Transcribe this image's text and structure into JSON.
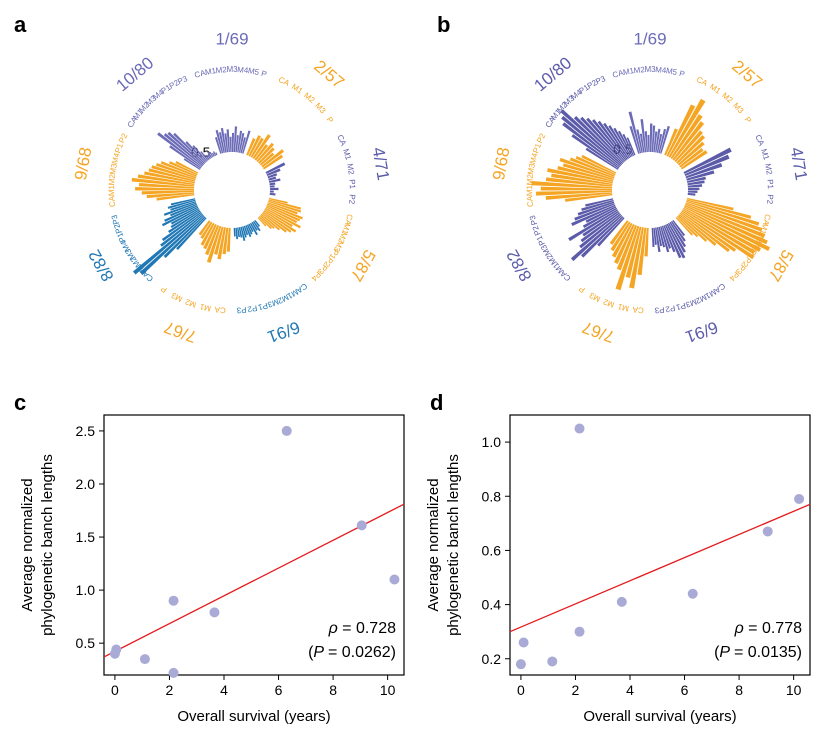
{
  "panels": [
    {
      "letter": "a",
      "type": "circular-bar",
      "scale_label": "0.5",
      "groups": [
        {
          "label": "1/69",
          "color": "#6b6bb7",
          "samples": [
            "CA",
            "M1",
            "M2",
            "M3",
            "M4",
            "M5",
            "P"
          ],
          "bars": [
            0.18,
            0.25,
            0.22,
            0.26,
            0.2,
            0.24,
            0.16,
            0.2,
            0.27,
            0.18,
            0.23,
            0.21,
            0.17,
            0.25
          ]
        },
        {
          "label": "2/57",
          "color": "#f5a524",
          "samples": [
            "CA",
            "M1",
            "M2",
            "M3",
            "P"
          ],
          "bars": [
            0.19,
            0.24,
            0.23,
            0.3,
            0.2,
            0.25,
            0.22,
            0.18,
            0.28,
            0.24
          ]
        },
        {
          "label": "4/71",
          "color": "#5b5baa",
          "samples": [
            "CA",
            "M1",
            "M2",
            "P1",
            "P2"
          ],
          "bars": [
            0.22,
            0.15,
            0.1,
            0.08,
            0.12,
            0.06,
            0.05,
            0.09,
            0.04,
            0.06
          ]
        },
        {
          "label": "5/87",
          "color": "#f5a524",
          "samples": [
            "CA",
            "M1",
            "M2",
            "M3",
            "P1",
            "P2",
            "P3",
            "P4"
          ],
          "bars": [
            0.2,
            0.35,
            0.36,
            0.33,
            0.4,
            0.38,
            0.36,
            0.42,
            0.34,
            0.4,
            0.36,
            0.32,
            0.25,
            0.2,
            0.18,
            0.12
          ]
        },
        {
          "label": "6/91",
          "color": "#1f77b4",
          "samples": [
            "CA",
            "M1",
            "M2",
            "M3",
            "P1",
            "P2",
            "P3"
          ],
          "bars": [
            0.08,
            0.12,
            0.1,
            0.14,
            0.09,
            0.11,
            0.13,
            0.1,
            0.12,
            0.15,
            0.11,
            0.1,
            0.12,
            0.09
          ]
        },
        {
          "label": "7/67",
          "color": "#f5a524",
          "samples": [
            "CA",
            "M1",
            "M2",
            "M3",
            "P"
          ],
          "bars": [
            0.25,
            0.28,
            0.34,
            0.3,
            0.4,
            0.33,
            0.28,
            0.26,
            0.2,
            0.18
          ]
        },
        {
          "label": "8/82",
          "color": "#1f77b4",
          "samples": [
            "CA",
            "M1",
            "M2",
            "M3",
            "M4",
            "P1",
            "P2",
            "P3"
          ],
          "bars": [
            0.45,
            0.6,
            0.9,
            0.95,
            0.55,
            0.5,
            0.4,
            0.35,
            0.33,
            0.42,
            0.38,
            0.3,
            0.36,
            0.28,
            0.3,
            0.26
          ]
        },
        {
          "label": "9/68",
          "color": "#f5a524",
          "samples": [
            "CA",
            "M1",
            "M2",
            "M3",
            "M4",
            "P1",
            "P2"
          ],
          "bars": [
            0.4,
            0.5,
            0.55,
            0.62,
            0.58,
            0.66,
            0.6,
            0.54,
            0.5,
            0.48,
            0.44,
            0.4,
            0.32,
            0.26
          ]
        },
        {
          "label": "10/80",
          "color": "#6b6bb7",
          "samples": [
            "CA",
            "M1",
            "M2",
            "M3",
            "M4",
            "P1",
            "P2",
            "P3"
          ],
          "bars": [
            0.2,
            0.4,
            0.58,
            0.52,
            0.5,
            0.45,
            0.3,
            0.22,
            0.12,
            0.06,
            0.05,
            0.08,
            0.06,
            0.04,
            0.05,
            0.03
          ]
        }
      ]
    },
    {
      "letter": "b",
      "type": "circular-bar",
      "scale_label": "0.5",
      "groups": [
        {
          "label": "1/69",
          "color": "#6b6bb7",
          "samples": [
            "CA",
            "M1",
            "M2",
            "M3",
            "M4",
            "M5",
            "P"
          ],
          "bars": [
            0.3,
            0.45,
            0.25,
            0.2,
            0.35,
            0.22,
            0.18,
            0.3,
            0.28,
            0.22,
            0.25,
            0.2,
            0.26,
            0.3
          ]
        },
        {
          "label": "2/57",
          "color": "#f5a524",
          "samples": [
            "CA",
            "M1",
            "M2",
            "M3",
            "P"
          ],
          "bars": [
            0.3,
            0.6,
            0.7,
            0.55,
            0.5,
            0.42,
            0.4,
            0.35,
            0.3,
            0.32
          ]
        },
        {
          "label": "4/71",
          "color": "#5b5baa",
          "samples": [
            "CA",
            "M1",
            "M2",
            "P1",
            "P2"
          ],
          "bars": [
            0.55,
            0.5,
            0.4,
            0.3,
            0.2,
            0.18,
            0.15,
            0.12,
            0.1,
            0.08
          ]
        },
        {
          "label": "5/87",
          "color": "#f5a524",
          "samples": [
            "CA",
            "M1",
            "M2",
            "M3",
            "P1",
            "P2",
            "P3",
            "P4"
          ],
          "bars": [
            0.5,
            0.7,
            0.8,
            0.85,
            0.9,
            0.95,
            1.0,
            0.92,
            0.88,
            0.9,
            0.7,
            0.65,
            0.5,
            0.4,
            0.3,
            0.25
          ]
        },
        {
          "label": "6/91",
          "color": "#5b5baa",
          "samples": [
            "CA",
            "M1",
            "M2",
            "M3",
            "P1",
            "P2",
            "P3"
          ],
          "bars": [
            0.2,
            0.25,
            0.3,
            0.35,
            0.4,
            0.38,
            0.3,
            0.25,
            0.28,
            0.22,
            0.2,
            0.26,
            0.18,
            0.2
          ]
        },
        {
          "label": "7/67",
          "color": "#f5a524",
          "samples": [
            "CA",
            "M1",
            "M2",
            "M3",
            "P"
          ],
          "bars": [
            0.3,
            0.5,
            0.65,
            0.55,
            0.7,
            0.5,
            0.45,
            0.4,
            0.35,
            0.3
          ]
        },
        {
          "label": "8/82",
          "color": "#5b5baa",
          "samples": [
            "CA",
            "M1",
            "M2",
            "M3",
            "P1",
            "P2",
            "P3"
          ],
          "bars": [
            0.4,
            0.6,
            0.7,
            0.55,
            0.5,
            0.45,
            0.6,
            0.4,
            0.35,
            0.5,
            0.45,
            0.4,
            0.35,
            0.3
          ]
        },
        {
          "label": "9/68",
          "color": "#f5a524",
          "samples": [
            "CA",
            "M1",
            "M2",
            "M3",
            "M4",
            "P1",
            "P2"
          ],
          "bars": [
            0.5,
            0.7,
            0.8,
            0.75,
            0.85,
            0.7,
            0.65,
            0.7,
            0.6,
            0.55,
            0.6,
            0.5,
            0.45,
            0.4
          ]
        },
        {
          "label": "10/80",
          "color": "#5b5baa",
          "samples": [
            "CA",
            "M1",
            "M2",
            "M3",
            "M4",
            "P1",
            "P2",
            "P3"
          ],
          "bars": [
            0.4,
            0.6,
            0.75,
            0.8,
            0.85,
            0.7,
            0.65,
            0.6,
            0.55,
            0.5,
            0.45,
            0.4,
            0.35,
            0.3,
            0.25,
            0.2
          ]
        }
      ]
    }
  ],
  "chart_data": [
    {
      "letter": "c",
      "type": "scatter",
      "xlabel": "Overall survival (years)",
      "ylabel": [
        "Average normalized",
        "phylogenetic banch lengths"
      ],
      "xlim": [
        -0.4,
        10.6
      ],
      "ylim": [
        0.2,
        2.65
      ],
      "xticks": [
        0,
        2,
        4,
        6,
        8,
        10
      ],
      "yticks": [
        0.5,
        1.0,
        1.5,
        2.0,
        2.5
      ],
      "ytick_labels": [
        "0.5",
        "1.0",
        "1.5",
        "2.0",
        "2.5"
      ],
      "points": [
        [
          0.0,
          0.4
        ],
        [
          0.05,
          0.44
        ],
        [
          1.1,
          0.35
        ],
        [
          2.15,
          0.9
        ],
        [
          2.15,
          0.22
        ],
        [
          3.65,
          0.79
        ],
        [
          6.3,
          2.5
        ],
        [
          9.05,
          1.61
        ],
        [
          10.25,
          1.1
        ]
      ],
      "fit_line": {
        "x": [
          -0.4,
          10.6
        ],
        "y": [
          0.37,
          1.81
        ],
        "color": "#e41a1c"
      },
      "annotation": {
        "rho": "= 0.728",
        "p": "= 0.0262)"
      }
    },
    {
      "letter": "d",
      "type": "scatter",
      "xlabel": "Overall survival (years)",
      "ylabel": [
        "Average normalized",
        "phylogenetic banch lengths"
      ],
      "xlim": [
        -0.4,
        10.6
      ],
      "ylim": [
        0.14,
        1.1
      ],
      "xticks": [
        0,
        2,
        4,
        6,
        8,
        10
      ],
      "yticks": [
        0.2,
        0.4,
        0.6,
        0.8,
        1.0
      ],
      "ytick_labels": [
        "0.2",
        "0.4",
        "0.6",
        "0.8",
        "1.0"
      ],
      "points": [
        [
          0.0,
          0.18
        ],
        [
          0.1,
          0.26
        ],
        [
          1.15,
          0.19
        ],
        [
          2.15,
          1.05
        ],
        [
          2.15,
          0.3
        ],
        [
          3.7,
          0.41
        ],
        [
          6.3,
          0.44
        ],
        [
          9.05,
          0.67
        ],
        [
          10.2,
          0.79
        ]
      ],
      "fit_line": {
        "x": [
          -0.4,
          10.6
        ],
        "y": [
          0.3,
          0.77
        ],
        "color": "#e41a1c"
      },
      "annotation": {
        "rho": "= 0.778",
        "p": "= 0.0135)"
      }
    }
  ],
  "colors": {
    "point": "#aaaad6",
    "text": "#000000"
  }
}
